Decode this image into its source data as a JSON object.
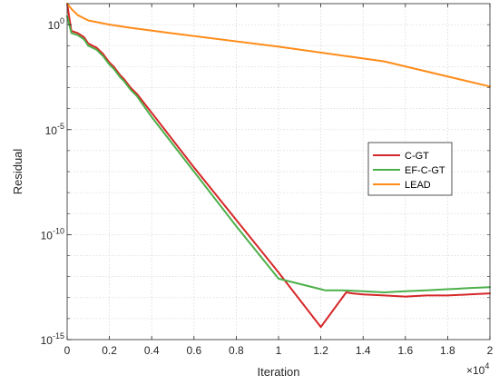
{
  "chart_data": {
    "type": "line",
    "title": "",
    "xlabel": "Iteration",
    "ylabel": "Residual",
    "x_multiplier_base": "×10",
    "x_multiplier_exp": "4",
    "xlim": [
      0,
      2
    ],
    "ylim_log10": [
      -15,
      1
    ],
    "y_scale": "log",
    "grid": true,
    "legend_position": "right",
    "x_ticks": [
      0,
      0.2,
      0.4,
      0.6,
      0.8,
      1,
      1.2,
      1.4,
      1.6,
      1.8,
      2
    ],
    "x_tick_labels": [
      "0",
      "0.2",
      "0.4",
      "0.6",
      "0.8",
      "1",
      "1.2",
      "1.4",
      "1.6",
      "1.8",
      "2"
    ],
    "y_ticks_log10": [
      0,
      -5,
      -10,
      -15
    ],
    "y_tick_labels": [
      {
        "base": "10",
        "exp": "0"
      },
      {
        "base": "10",
        "exp": "-5"
      },
      {
        "base": "10",
        "exp": "-10"
      },
      {
        "base": "10",
        "exp": "-15"
      }
    ],
    "series": [
      {
        "name": "C-GT",
        "color": "#d62728",
        "x": [
          0,
          0.02,
          0.05,
          0.08,
          0.1,
          0.12,
          0.14,
          0.17,
          0.2,
          0.22,
          0.25,
          0.27,
          0.3,
          0.33,
          0.4,
          0.6,
          0.8,
          1.0,
          1.2,
          1.32,
          1.35,
          1.4,
          1.5,
          1.6,
          1.7,
          1.8,
          1.9,
          2.0
        ],
        "y_log10": [
          1.0,
          -0.3,
          -0.4,
          -0.6,
          -0.9,
          -1.0,
          -1.1,
          -1.4,
          -1.8,
          -2.0,
          -2.4,
          -2.6,
          -3.0,
          -3.3,
          -4.2,
          -6.8,
          -9.3,
          -11.8,
          -14.4,
          -12.75,
          -12.8,
          -12.85,
          -12.9,
          -12.95,
          -12.9,
          -12.9,
          -12.85,
          -12.8
        ]
      },
      {
        "name": "EF-C-GT",
        "color": "#4daf4a",
        "x": [
          0,
          0.02,
          0.05,
          0.08,
          0.1,
          0.12,
          0.14,
          0.17,
          0.2,
          0.22,
          0.25,
          0.27,
          0.3,
          0.33,
          0.4,
          0.6,
          0.8,
          1.0,
          1.2,
          1.22,
          1.26,
          1.3,
          1.4,
          1.5,
          1.6,
          1.7,
          1.8,
          1.9,
          2.0
        ],
        "y_log10": [
          0.4,
          -0.4,
          -0.5,
          -0.7,
          -1.0,
          -1.1,
          -1.2,
          -1.5,
          -1.9,
          -2.1,
          -2.5,
          -2.7,
          -3.1,
          -3.4,
          -4.4,
          -7.0,
          -9.6,
          -12.1,
          -12.6,
          -12.65,
          -12.65,
          -12.65,
          -12.7,
          -12.75,
          -12.7,
          -12.65,
          -12.6,
          -12.55,
          -12.5
        ]
      },
      {
        "name": "LEAD",
        "color": "#ff8c1a",
        "x": [
          0,
          0.02,
          0.05,
          0.1,
          0.2,
          0.3,
          0.5,
          1.0,
          1.5,
          2.0
        ],
        "y_log10": [
          1.0,
          0.75,
          0.45,
          0.2,
          0.0,
          -0.15,
          -0.42,
          -1.05,
          -1.75,
          -2.95
        ]
      }
    ]
  }
}
